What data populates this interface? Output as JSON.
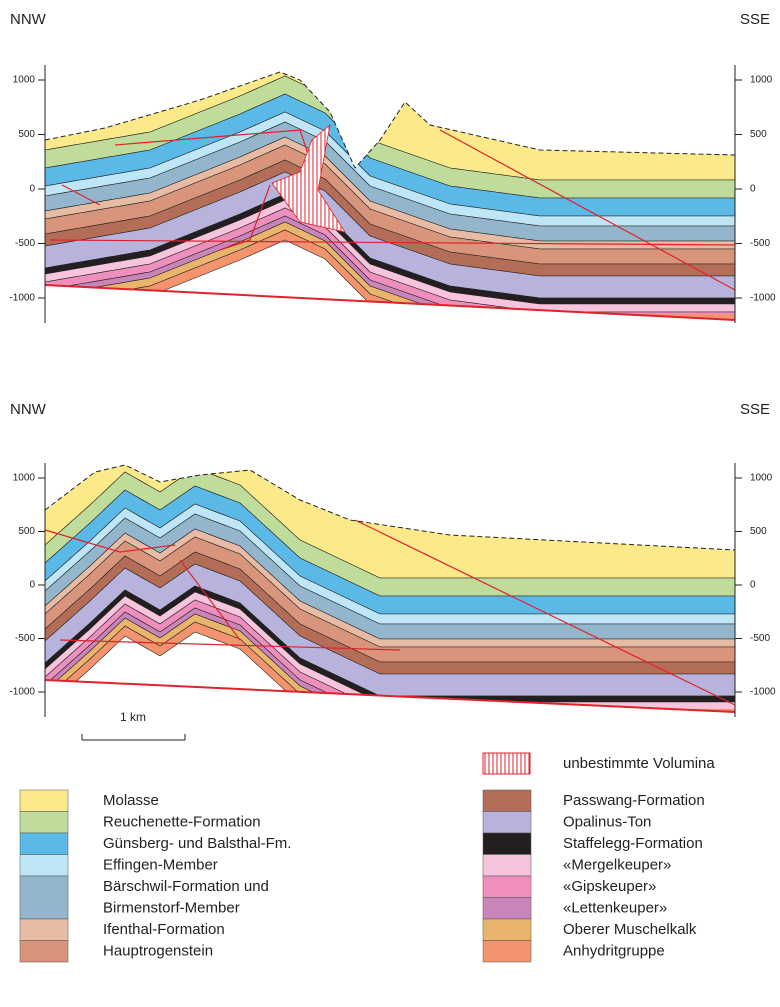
{
  "sections": [
    {
      "left_label": "NNW",
      "right_label": "SSE",
      "left_ticks": [
        "1000",
        "500",
        "0",
        "-500",
        "-1000"
      ],
      "right_ticks": [
        "1000",
        "500",
        "0",
        "-500",
        "-1000"
      ]
    },
    {
      "left_label": "NNW",
      "right_label": "SSE",
      "left_ticks": [
        "1000",
        "500",
        "0",
        "-500",
        "-1000"
      ],
      "right_ticks": [
        "1000",
        "500",
        "0",
        "-500",
        "-1000"
      ]
    }
  ],
  "scale_bar": "1 km",
  "legend": {
    "hatch": "unbestimmte Volumina",
    "left": [
      {
        "lines": [
          "Molasse"
        ],
        "color": "#fbe98a"
      },
      {
        "lines": [
          "Reuchenette-Formation"
        ],
        "color": "#bfdc9a"
      },
      {
        "lines": [
          "Günsberg- und Balsthal-Fm."
        ],
        "color": "#5ab9e6"
      },
      {
        "lines": [
          "Effingen-Member"
        ],
        "color": "#bfe6f7"
      },
      {
        "lines": [
          "Bärschwil-Formation und",
          "Birmenstorf-Member"
        ],
        "color": "#93b6cc"
      },
      {
        "lines": [
          "Ifenthal-Formation"
        ],
        "color": "#e7bba4"
      },
      {
        "lines": [
          "Hauptrogenstein"
        ],
        "color": "#d9957c"
      }
    ],
    "right": [
      {
        "lines": [
          "Passwang-Formation"
        ],
        "color": "#b46e57"
      },
      {
        "lines": [
          "Opalinus-Ton"
        ],
        "color": "#b8b3dd"
      },
      {
        "lines": [
          "Staffelegg-Formation"
        ],
        "color": "#231f20"
      },
      {
        "lines": [
          "«Mergelkeuper»"
        ],
        "color": "#f6c5dd"
      },
      {
        "lines": [
          "«Gipskeuper»"
        ],
        "color": "#ee8fbd"
      },
      {
        "lines": [
          "«Lettenkeuper»"
        ],
        "color": "#c985ba"
      },
      {
        "lines": [
          "Oberer Muschelkalk"
        ],
        "color": "#e9b46b"
      },
      {
        "lines": [
          "Anhydritgruppe"
        ],
        "color": "#f3946e"
      }
    ]
  }
}
